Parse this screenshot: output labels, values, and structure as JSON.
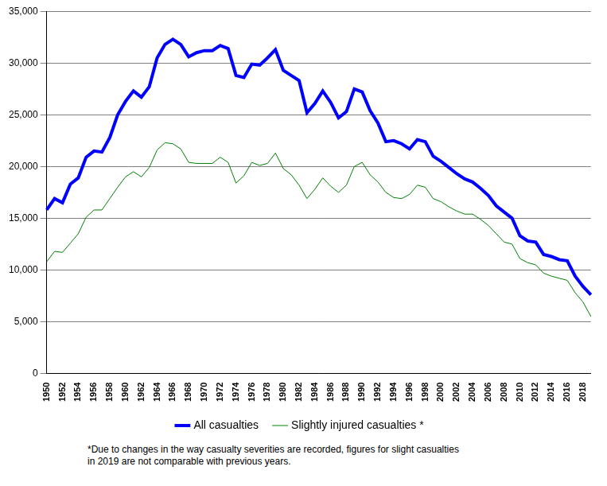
{
  "chart_data": {
    "type": "line",
    "categories": [
      "1950",
      null,
      "1952",
      null,
      "1954",
      null,
      "1956",
      null,
      "1958",
      null,
      "1960",
      null,
      "1962",
      null,
      "1964",
      null,
      "1966",
      null,
      "1968",
      null,
      "1970",
      null,
      "1972",
      null,
      "1974",
      null,
      "1976",
      null,
      "1978",
      null,
      "1980",
      null,
      "1982",
      null,
      "1984",
      null,
      "1986",
      null,
      "1988",
      null,
      "1990",
      null,
      "1992",
      null,
      "1994",
      null,
      "1996",
      null,
      "1998",
      null,
      "2000",
      null,
      "2002",
      null,
      "2004",
      null,
      "2006",
      null,
      "2008",
      null,
      "2010",
      null,
      "2012",
      null,
      "2014",
      null,
      "2016",
      null,
      "2018",
      null
    ],
    "series": [
      {
        "name": "All casualties",
        "color": "#0000ff",
        "values": [
          15800,
          16900,
          16500,
          18300,
          18900,
          20900,
          21500,
          21400,
          22800,
          25000,
          26300,
          27300,
          26700,
          27700,
          30500,
          31800,
          32300,
          31800,
          30600,
          31000,
          31200,
          31200,
          31700,
          31400,
          28800,
          28600,
          29900,
          29800,
          30500,
          31300,
          29300,
          28800,
          28300,
          25200,
          26100,
          27300,
          26200,
          24700,
          25300,
          27500,
          27200,
          25400,
          24200,
          22400,
          22500,
          22200,
          21700,
          22600,
          22400,
          21000,
          20500,
          19900,
          19300,
          18800,
          18500,
          17900,
          17200,
          16200,
          15600,
          15000,
          13300,
          12800,
          12700,
          11500,
          11300,
          11000,
          10900,
          9400,
          8400,
          7600
        ]
      },
      {
        "name": "Slightly injured casualties *",
        "color": "#008000",
        "values": [
          10800,
          11800,
          11700,
          12600,
          13500,
          15100,
          15800,
          15800,
          16900,
          18000,
          19000,
          19500,
          19000,
          19900,
          21600,
          22300,
          22200,
          21700,
          20400,
          20300,
          20300,
          20300,
          20900,
          20400,
          18400,
          19100,
          20400,
          20100,
          20300,
          21300,
          19800,
          19200,
          18200,
          16900,
          17800,
          18900,
          18100,
          17500,
          18200,
          20000,
          20400,
          19200,
          18500,
          17500,
          17000,
          16900,
          17300,
          18200,
          18000,
          16900,
          16600,
          16100,
          15700,
          15400,
          15400,
          14900,
          14300,
          13500,
          12700,
          12500,
          11100,
          10700,
          10500,
          9700,
          9400,
          9200,
          9000,
          7800,
          6900,
          5500
        ]
      }
    ],
    "ylim": [
      0,
      35000
    ],
    "yticks": [
      0,
      {
        "value": 5000,
        "label": "5,000"
      },
      {
        "value": 10000,
        "label": "10,000"
      },
      {
        "value": 15000,
        "label": "15,000"
      },
      {
        "value": 20000,
        "label": "20,000"
      },
      {
        "value": 25000,
        "label": "25,000"
      },
      {
        "value": 30000,
        "label": "30,000"
      },
      {
        "value": 35000,
        "label": "35,000"
      }
    ],
    "grid": true,
    "legend": "bottom",
    "annotations": [
      "*Due to changes in the way casualty severities are recorded, figures for slight casualties",
      "in 2019 are not comparable with previous years."
    ]
  }
}
